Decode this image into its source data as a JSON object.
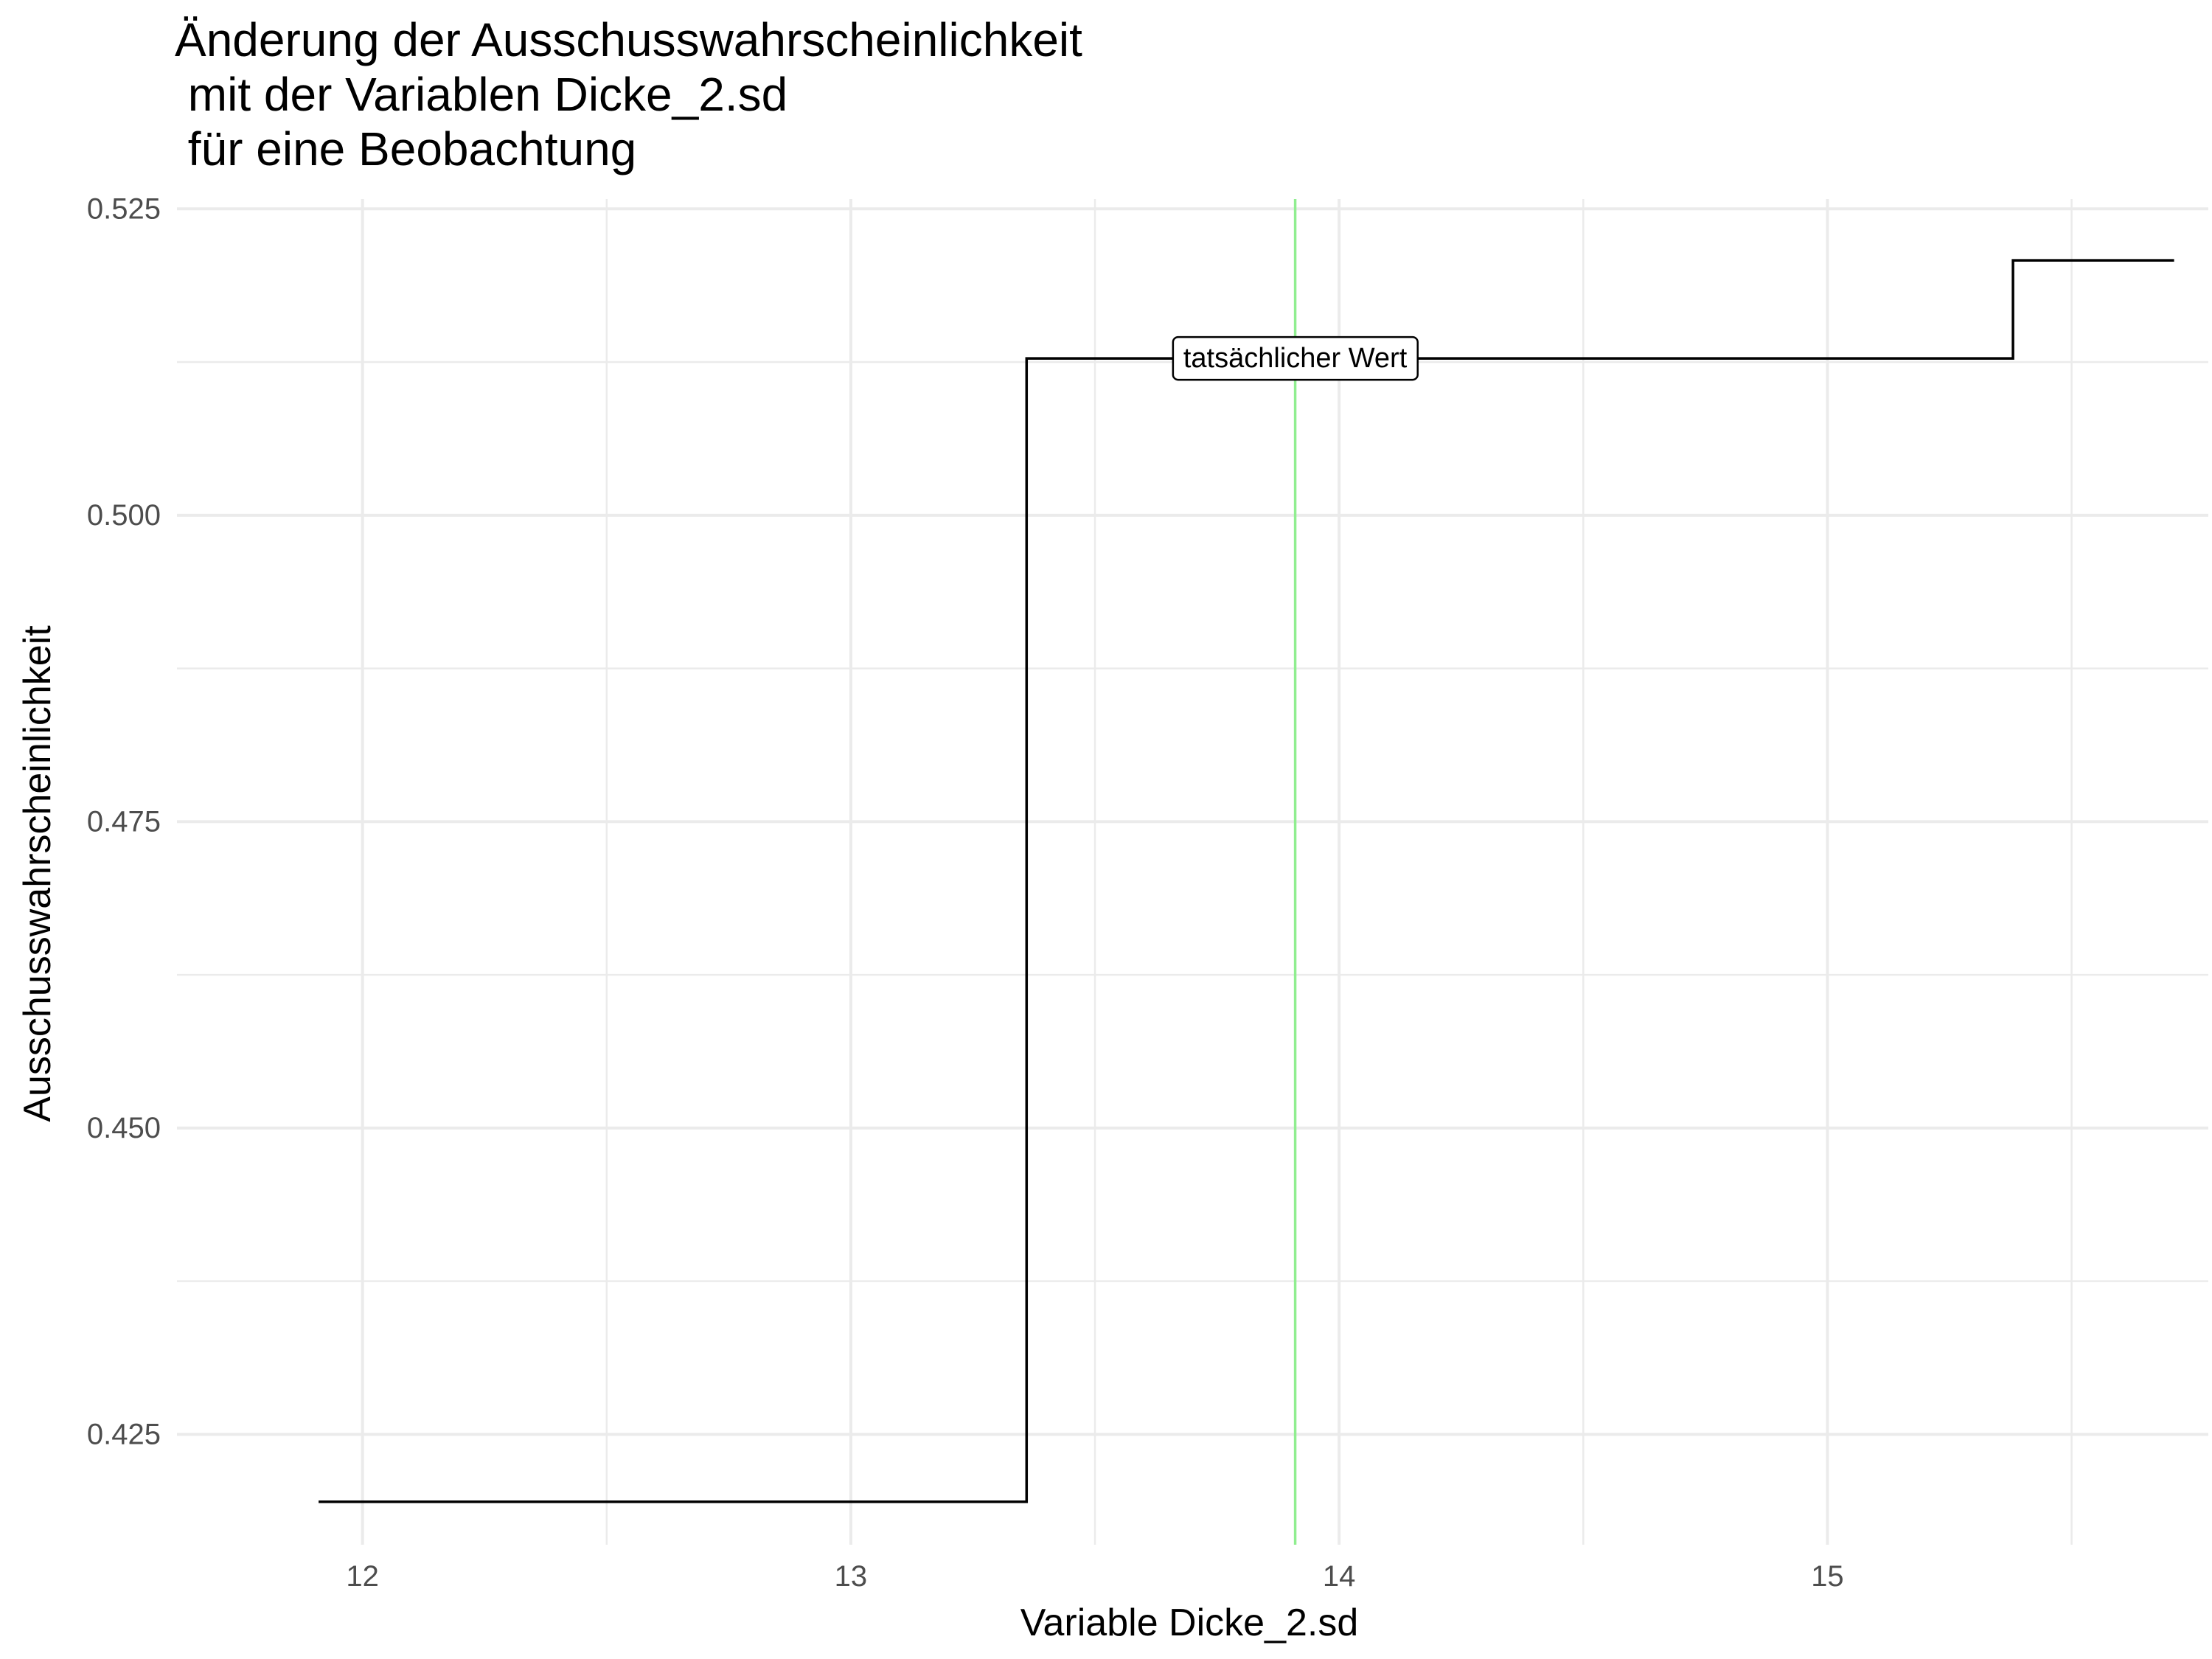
{
  "chart_data": {
    "type": "line",
    "title_lines": [
      "Änderung der Ausschusswahrscheinlichkeit",
      " mit der Variablen Dicke_2.sd",
      " für eine Beobachtung"
    ],
    "xlabel": "Variable Dicke_2.sd",
    "ylabel": "Ausschusswahrscheinlichkeit",
    "xlim": [
      11.62,
      15.78
    ],
    "ylim": [
      0.416,
      0.5258
    ],
    "x_ticks": [
      12,
      13,
      14,
      15
    ],
    "x_tick_labels": [
      "12",
      "13",
      "14",
      "15"
    ],
    "x_minor_ticks": [
      12.5,
      13.5,
      14.5,
      15.5
    ],
    "y_ticks": [
      0.425,
      0.45,
      0.475,
      0.5,
      0.525
    ],
    "y_tick_labels": [
      "0.425",
      "0.450",
      "0.475",
      "0.500",
      "0.525"
    ],
    "y_minor_ticks": [
      0.4375,
      0.4625,
      0.4875,
      0.5125
    ],
    "grid": true,
    "legend": "none",
    "series": [
      {
        "color": "#000000",
        "step": true,
        "x": [
          11.91,
          13.36,
          13.36,
          15.38,
          15.38,
          15.71
        ],
        "y": [
          0.4195,
          0.4195,
          0.5128,
          0.5128,
          0.5208,
          0.5208
        ]
      }
    ],
    "vertical_line": {
      "x": 13.91,
      "color": "#90ee90"
    },
    "annotation": {
      "text": "tatsächlicher Wert",
      "x": 13.91,
      "y": 0.5128
    }
  }
}
